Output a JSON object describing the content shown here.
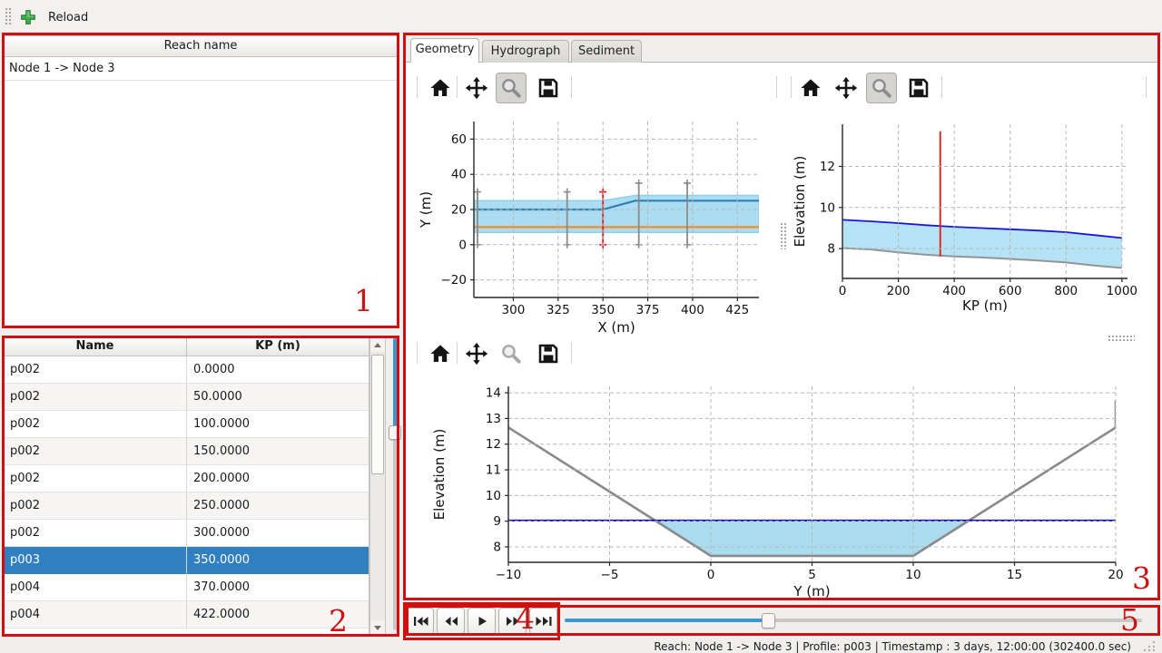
{
  "window": {
    "toolbar": {
      "reload_label": "Reload"
    },
    "status_bar": "Reach: Node 1 -> Node 3 | Profile: p003 | Timestamp : 3 days, 12:00:00 (302400.0 sec)"
  },
  "reach_panel": {
    "header": "Reach name",
    "rows": [
      "Node 1 -> Node 3"
    ]
  },
  "profile_table": {
    "headers": [
      "Name",
      "KP (m)"
    ],
    "rows": [
      [
        "p002",
        "0.0000"
      ],
      [
        "p002",
        "50.0000"
      ],
      [
        "p002",
        "100.0000"
      ],
      [
        "p002",
        "150.0000"
      ],
      [
        "p002",
        "200.0000"
      ],
      [
        "p002",
        "250.0000"
      ],
      [
        "p002",
        "300.0000"
      ],
      [
        "p003",
        "350.0000"
      ],
      [
        "p004",
        "370.0000"
      ],
      [
        "p004",
        "422.0000"
      ]
    ],
    "selected_index": 7
  },
  "tabs": [
    {
      "label": "Geometry",
      "active": true
    },
    {
      "label": "Hydrograph",
      "active": false
    },
    {
      "label": "Sediment",
      "active": false
    }
  ],
  "time_slider": {
    "fraction": 0.35
  },
  "vertical_slider": {
    "fraction": 0.315
  },
  "annotations": {
    "labels": [
      "1",
      "2",
      "3",
      "4",
      "5"
    ],
    "color": "#c81414"
  },
  "colors": {
    "selection": "#2f7fc1",
    "slider_fill": "#3d96d2",
    "annotation": "#cf1010",
    "water_fill": "#abdcf2",
    "water_line": "#1a16d9",
    "bed_line": "#8a8a8a",
    "marker_red": "#e41616",
    "centerline_blue": "#2d7fb5",
    "reference_orange": "#f78b1f"
  },
  "chart_data": [
    {
      "id": "plan-view",
      "type": "line",
      "xlabel": "X (m)",
      "ylabel": "Y (m)",
      "xlim": [
        278,
        437
      ],
      "ylim": [
        -30,
        70
      ],
      "xticks": [
        300,
        325,
        350,
        375,
        400,
        425
      ],
      "yticks": [
        -20,
        0,
        20,
        40,
        60
      ],
      "grid": true,
      "fills": [
        {
          "name": "channel-band",
          "color": "#abdcf2",
          "edge": "#8dd0ec",
          "x": [
            278,
            350,
            368,
            437,
            437,
            278
          ],
          "y": [
            25,
            25,
            28,
            28,
            7,
            7
          ]
        }
      ],
      "lines": [
        {
          "name": "channel-centerline",
          "color": "#2d7fb5",
          "width": 2.2,
          "x": [
            278,
            350,
            368,
            437
          ],
          "y": [
            20,
            20,
            25,
            25
          ]
        },
        {
          "name": "reference-line",
          "color": "#f78b1f",
          "width": 2.2,
          "x": [
            278,
            437
          ],
          "y": [
            10,
            10
          ]
        }
      ],
      "vlines": [
        {
          "name": "cross-section-marker",
          "x": 280,
          "y0": 0,
          "y1": 30,
          "color": "#8a8a8a",
          "markers": true
        },
        {
          "name": "cross-section-marker",
          "x": 330,
          "y0": 0,
          "y1": 30,
          "color": "#8a8a8a",
          "markers": true
        },
        {
          "name": "selected-profile-marker",
          "x": 350,
          "y0": 0,
          "y1": 30,
          "color": "#e41616",
          "markers": true
        },
        {
          "name": "cross-section-marker",
          "x": 370,
          "y0": 0,
          "y1": 35,
          "color": "#8a8a8a",
          "markers": true
        },
        {
          "name": "cross-section-marker",
          "x": 397,
          "y0": 0,
          "y1": 35,
          "color": "#8a8a8a",
          "markers": true
        }
      ]
    },
    {
      "id": "long-profile",
      "type": "area",
      "xlabel": "KP (m)",
      "ylabel": "Elevation (m)",
      "xlim": [
        0,
        1020
      ],
      "ylim": [
        6.55,
        14.05
      ],
      "xticks": [
        0,
        200,
        400,
        600,
        800,
        1000
      ],
      "yticks": [
        8,
        10,
        12
      ],
      "grid": true,
      "fills": [
        {
          "name": "water-body",
          "color": "#b5e2f4",
          "between": [
            "water-surface",
            "bed-profile"
          ]
        }
      ],
      "lines": [
        {
          "name": "water-surface",
          "color": "#1a16d9",
          "width": 1.8,
          "x": [
            0,
            100,
            200,
            300,
            400,
            500,
            600,
            700,
            800,
            900,
            1000
          ],
          "y": [
            9.4,
            9.33,
            9.24,
            9.14,
            9.06,
            9.0,
            8.94,
            8.88,
            8.8,
            8.66,
            8.52
          ]
        },
        {
          "name": "bed-profile",
          "color": "#949494",
          "width": 2.0,
          "x": [
            0,
            100,
            200,
            300,
            400,
            500,
            600,
            700,
            800,
            900,
            1000
          ],
          "y": [
            8.02,
            7.96,
            7.82,
            7.7,
            7.62,
            7.57,
            7.5,
            7.42,
            7.33,
            7.18,
            7.06
          ]
        }
      ],
      "vlines": [
        {
          "name": "selected-profile-marker",
          "x": 350,
          "y0": 7.62,
          "y1": 13.7,
          "color": "#e41616",
          "markers": false
        }
      ]
    },
    {
      "id": "cross-section",
      "type": "line",
      "xlabel": "Y (m)",
      "ylabel": "Elevation (m)",
      "xlim": [
        -10,
        20
      ],
      "ylim": [
        7.4,
        14.25
      ],
      "xticks": [
        -10,
        -5,
        0,
        5,
        10,
        15,
        20
      ],
      "yticks": [
        8,
        9,
        10,
        11,
        12,
        13,
        14
      ],
      "grid": true,
      "fills": [
        {
          "name": "water-area",
          "color": "#a9dcee",
          "x": [
            -2.76,
            0,
            10,
            12.76
          ],
          "y": [
            9.03,
            7.65,
            7.65,
            9.03
          ]
        }
      ],
      "lines": [
        {
          "name": "bed-section",
          "color": "#8a8a8a",
          "width": 2.6,
          "x": [
            -10,
            0,
            10,
            20,
            20
          ],
          "y": [
            12.65,
            7.65,
            7.65,
            12.65,
            13.7
          ]
        },
        {
          "name": "water-level",
          "color": "#1512cf",
          "width": 2.0,
          "x": [
            -10,
            20
          ],
          "y": [
            9.03,
            9.03
          ]
        }
      ],
      "vlines": []
    }
  ]
}
